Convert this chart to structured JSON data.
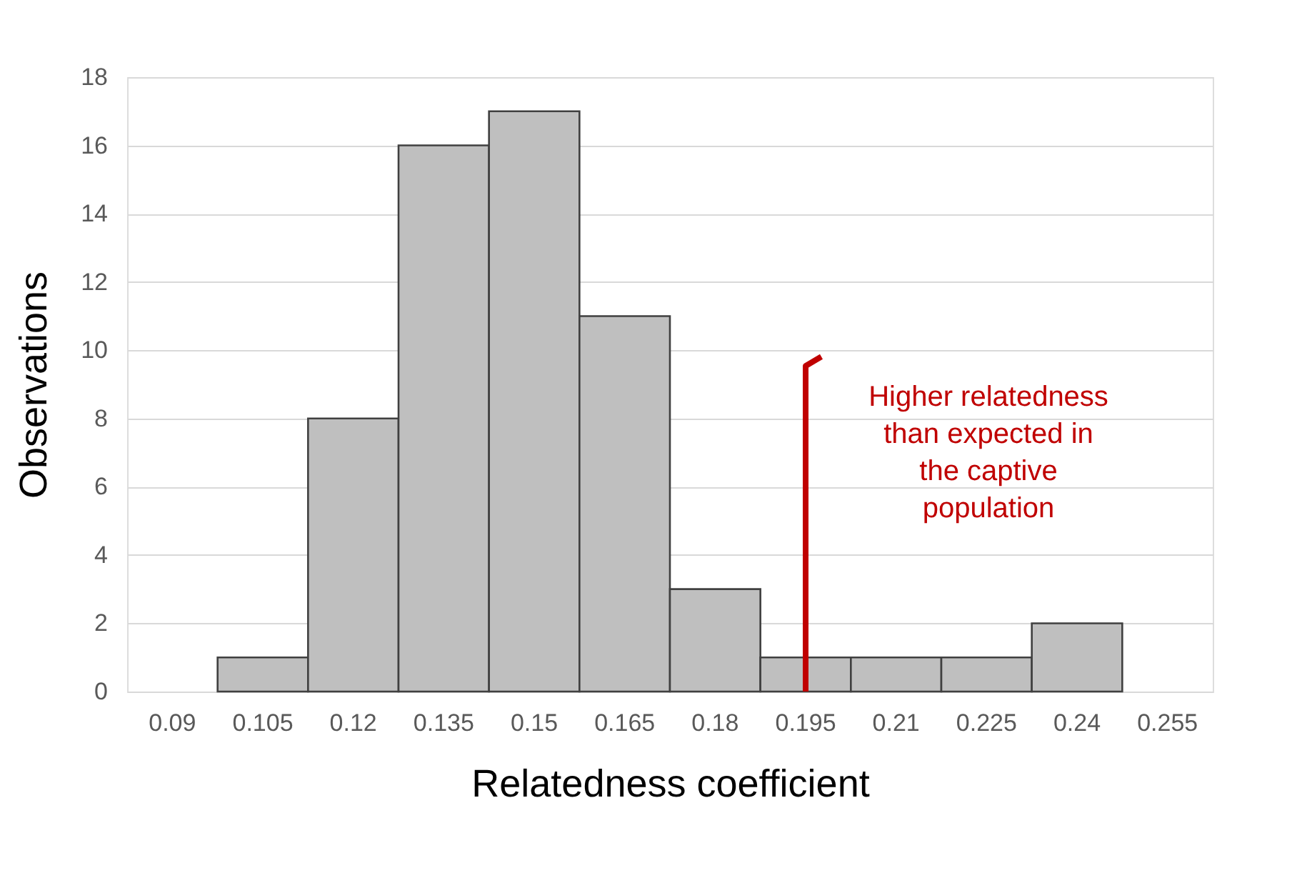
{
  "chart_data": {
    "type": "bar",
    "xlabel": "Relatedness coefficient",
    "ylabel": "Observations",
    "categories": [
      "0.09",
      "0.105",
      "0.12",
      "0.135",
      "0.15",
      "0.165",
      "0.18",
      "0.195",
      "0.21",
      "0.225",
      "0.24",
      "0.255"
    ],
    "values": [
      0,
      1,
      8,
      16,
      17,
      11,
      3,
      1,
      1,
      1,
      2,
      0
    ],
    "color": "#bfbfbf",
    "ylim": [
      0,
      18
    ],
    "yticks": [
      0,
      2,
      4,
      6,
      8,
      10,
      12,
      14,
      16,
      18
    ],
    "grid": "y",
    "ref_lines": [
      {
        "axis": "x",
        "value": "0.195",
        "label": "Higher relatedness than expected in the captive population",
        "color": "#c00000"
      }
    ]
  }
}
